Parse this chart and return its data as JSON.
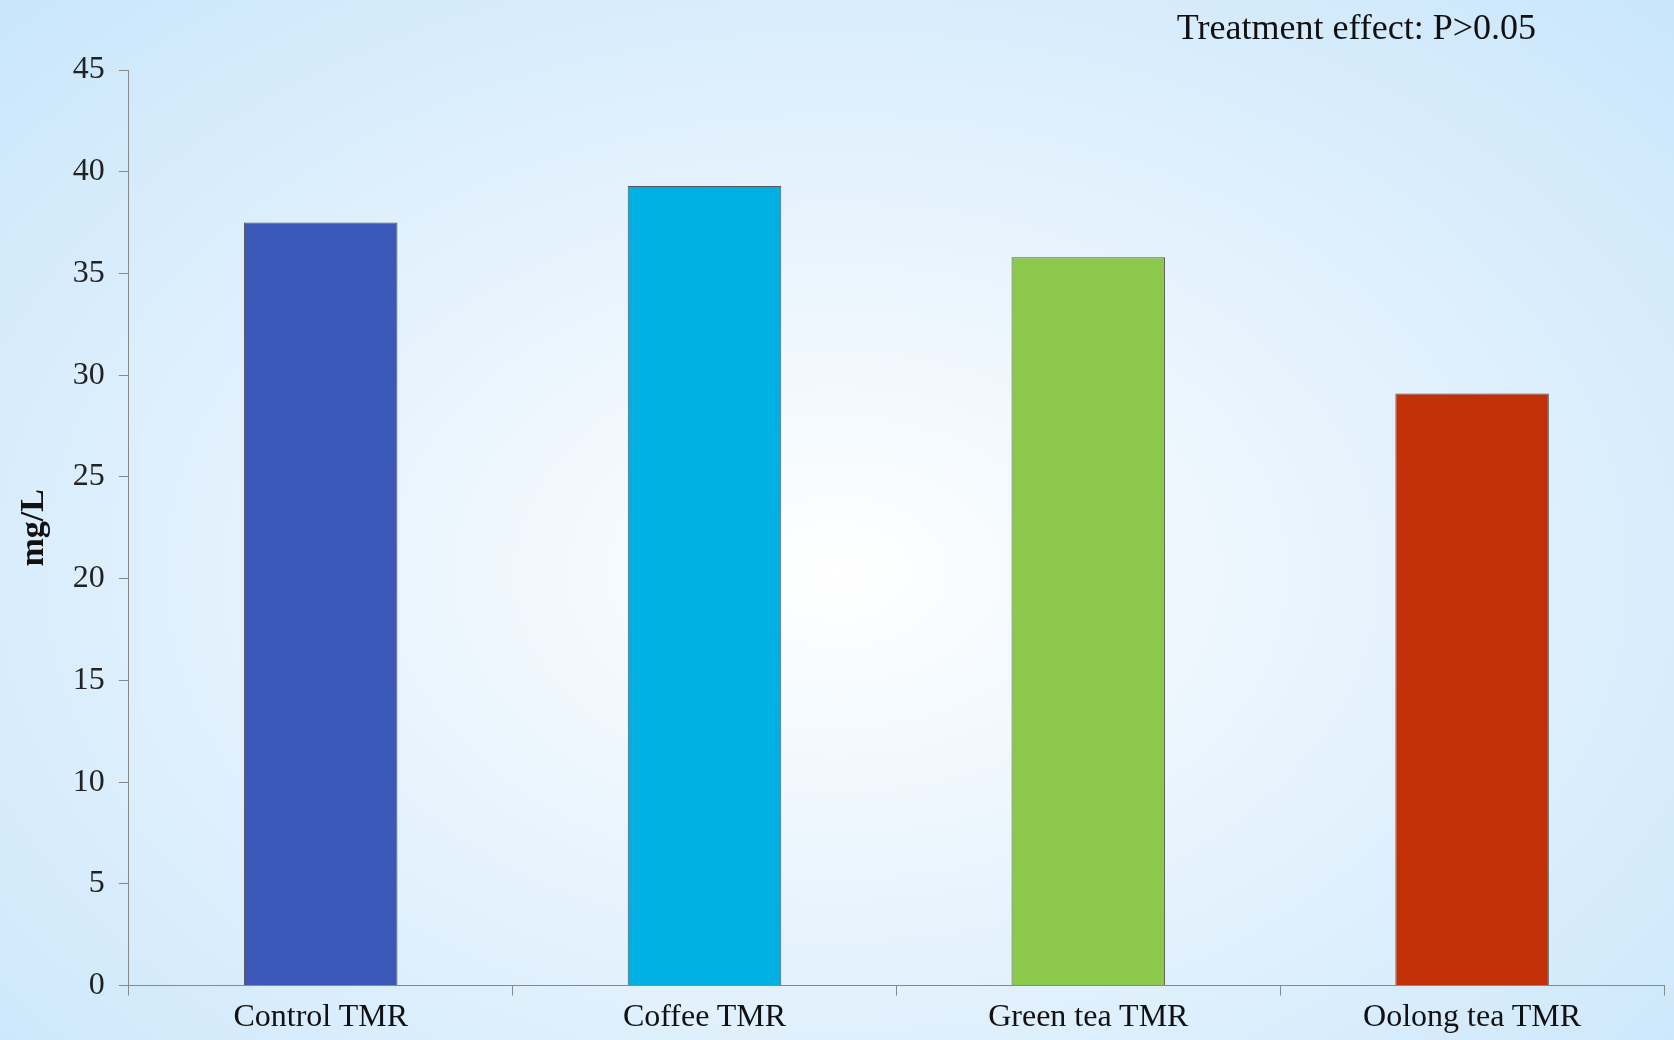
{
  "chart_data": {
    "type": "bar",
    "categories": [
      "Control TMR",
      "Coffee TMR",
      "Green tea TMR",
      "Oolong tea TMR"
    ],
    "values": [
      37.5,
      39.3,
      35.8,
      29.1
    ],
    "colors": [
      "#3b58b8",
      "#00b0e2",
      "#8cc84b",
      "#c23008"
    ],
    "ylabel": "mg/L",
    "ylim": [
      0,
      45
    ],
    "yticks": [
      0,
      5,
      10,
      15,
      20,
      25,
      30,
      35,
      40,
      45
    ],
    "annotations": [
      "Treatment effect: P>0.05"
    ],
    "grid": false,
    "legend": false
  }
}
